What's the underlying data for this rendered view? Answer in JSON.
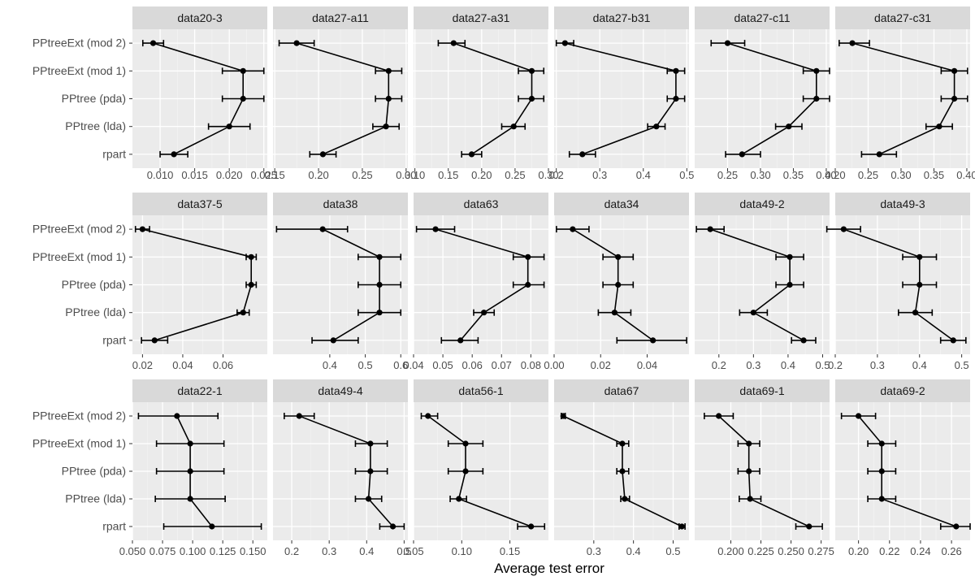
{
  "chart_data": {
    "type": "scatter",
    "xlabel": "Average test error",
    "ylabel": "",
    "grid": true,
    "legend": "none",
    "models": [
      "PPtreeExt (mod 2)",
      "PPtreeExt (mod 1)",
      "PPtree (pda)",
      "PPtree (lda)",
      "rpart"
    ],
    "panels": [
      {
        "title": "data20-3",
        "xlim": [
          0.006,
          0.0255
        ],
        "ticks": [
          0.01,
          0.015,
          0.02,
          0.025
        ],
        "tick_labels": [
          "0.010",
          "0.015",
          "0.020",
          "0.025"
        ],
        "values": [
          0.009,
          0.022,
          0.022,
          0.02,
          0.012
        ],
        "lower": [
          0.0075,
          0.019,
          0.019,
          0.017,
          0.01
        ],
        "upper": [
          0.0105,
          0.025,
          0.025,
          0.023,
          0.014
        ]
      },
      {
        "title": "data27-a11",
        "xlim": [
          0.148,
          0.302
        ],
        "ticks": [
          0.15,
          0.2,
          0.25,
          0.3
        ],
        "tick_labels": [
          "0.15",
          "0.20",
          "0.25",
          "0.30"
        ],
        "values": [
          0.175,
          0.28,
          0.28,
          0.277,
          0.205
        ],
        "lower": [
          0.155,
          0.265,
          0.265,
          0.262,
          0.19
        ],
        "upper": [
          0.195,
          0.295,
          0.295,
          0.292,
          0.22
        ]
      },
      {
        "title": "data27-a31",
        "xlim": [
          0.098,
          0.3
        ],
        "ticks": [
          0.1,
          0.15,
          0.2,
          0.25,
          0.3
        ],
        "tick_labels": [
          "0.10",
          "0.15",
          "0.20",
          "0.25",
          "0.30"
        ],
        "values": [
          0.158,
          0.275,
          0.275,
          0.248,
          0.185
        ],
        "lower": [
          0.135,
          0.255,
          0.255,
          0.23,
          0.17
        ],
        "upper": [
          0.175,
          0.293,
          0.293,
          0.265,
          0.2
        ]
      },
      {
        "title": "data27-b31",
        "xlim": [
          0.195,
          0.505
        ],
        "ticks": [
          0.2,
          0.3,
          0.4,
          0.5
        ],
        "tick_labels": [
          "0.2",
          "0.3",
          "0.4",
          "0.5"
        ],
        "values": [
          0.22,
          0.475,
          0.475,
          0.43,
          0.26
        ],
        "lower": [
          0.2,
          0.455,
          0.455,
          0.41,
          0.23
        ],
        "upper": [
          0.24,
          0.495,
          0.495,
          0.45,
          0.29
        ]
      },
      {
        "title": "data27-c11",
        "xlim": [
          0.2,
          0.405
        ],
        "ticks": [
          0.25,
          0.3,
          0.35,
          0.4
        ],
        "tick_labels": [
          "0.25",
          "0.30",
          "0.35",
          "0.40"
        ],
        "values": [
          0.25,
          0.385,
          0.385,
          0.343,
          0.272
        ],
        "lower": [
          0.225,
          0.365,
          0.365,
          0.323,
          0.247
        ],
        "upper": [
          0.276,
          0.405,
          0.405,
          0.363,
          0.3
        ]
      },
      {
        "title": "data27-c31",
        "xlim": [
          0.2,
          0.405
        ],
        "ticks": [
          0.2,
          0.25,
          0.3,
          0.35,
          0.4
        ],
        "tick_labels": [
          "0.20",
          "0.25",
          "0.30",
          "0.35",
          "0.40"
        ],
        "values": [
          0.226,
          0.381,
          0.381,
          0.358,
          0.267
        ],
        "lower": [
          0.206,
          0.361,
          0.361,
          0.338,
          0.24
        ],
        "upper": [
          0.252,
          0.401,
          0.401,
          0.378,
          0.293
        ]
      },
      {
        "title": "data37-5",
        "xlim": [
          0.015,
          0.082
        ],
        "ticks": [
          0.02,
          0.04,
          0.06
        ],
        "tick_labels": [
          "0.02",
          "0.04",
          "0.06"
        ],
        "values": [
          0.02,
          0.074,
          0.074,
          0.07,
          0.026
        ],
        "lower": [
          0.0165,
          0.0715,
          0.0715,
          0.067,
          0.0195
        ],
        "upper": [
          0.0235,
          0.0765,
          0.0765,
          0.073,
          0.0325
        ]
      },
      {
        "title": "data38",
        "xlim": [
          0.24,
          0.62
        ],
        "ticks": [
          0.4,
          0.5,
          0.6
        ],
        "tick_labels": [
          "0.4",
          "0.5",
          "0.6"
        ],
        "values": [
          0.38,
          0.54,
          0.54,
          0.54,
          0.41
        ],
        "lower": [
          0.25,
          0.48,
          0.48,
          0.48,
          0.35
        ],
        "upper": [
          0.45,
          0.6,
          0.6,
          0.6,
          0.48
        ]
      },
      {
        "title": "data63",
        "xlim": [
          0.04,
          0.086
        ],
        "ticks": [
          0.04,
          0.05,
          0.06,
          0.07,
          0.08
        ],
        "tick_labels": [
          "0.04",
          "0.05",
          "0.06",
          "0.07",
          "0.08"
        ],
        "values": [
          0.0475,
          0.079,
          0.079,
          0.064,
          0.056
        ],
        "lower": [
          0.041,
          0.074,
          0.074,
          0.0605,
          0.0495
        ],
        "upper": [
          0.054,
          0.0845,
          0.0845,
          0.0675,
          0.062
        ]
      },
      {
        "title": "data34",
        "xlim": [
          0.0,
          0.058
        ],
        "ticks": [
          0.0,
          0.02,
          0.04
        ],
        "tick_labels": [
          "0.00",
          "0.02",
          "0.04"
        ],
        "values": [
          0.008,
          0.0275,
          0.0275,
          0.026,
          0.0425
        ],
        "lower": [
          0.001,
          0.021,
          0.021,
          0.019,
          0.027
        ],
        "upper": [
          0.015,
          0.034,
          0.034,
          0.033,
          0.057
        ]
      },
      {
        "title": "data49-2",
        "xlim": [
          0.13,
          0.52
        ],
        "ticks": [
          0.2,
          0.3,
          0.4,
          0.5
        ],
        "tick_labels": [
          "0.2",
          "0.3",
          "0.4",
          "0.5"
        ],
        "values": [
          0.175,
          0.405,
          0.405,
          0.3,
          0.445
        ],
        "lower": [
          0.135,
          0.365,
          0.365,
          0.26,
          0.41
        ],
        "upper": [
          0.215,
          0.445,
          0.445,
          0.34,
          0.48
        ]
      },
      {
        "title": "data49-3",
        "xlim": [
          0.2,
          0.52
        ],
        "ticks": [
          0.2,
          0.3,
          0.4,
          0.5
        ],
        "tick_labels": [
          "0.2",
          "0.3",
          "0.4",
          "0.5"
        ],
        "values": [
          0.22,
          0.4,
          0.4,
          0.39,
          0.48
        ],
        "lower": [
          0.18,
          0.36,
          0.36,
          0.35,
          0.45
        ],
        "upper": [
          0.26,
          0.44,
          0.44,
          0.43,
          0.51
        ]
      },
      {
        "title": "data22-1",
        "xlim": [
          0.05,
          0.162
        ],
        "ticks": [
          0.05,
          0.075,
          0.1,
          0.125,
          0.15
        ],
        "tick_labels": [
          "0.050",
          "0.075",
          "0.100",
          "0.125",
          "0.150"
        ],
        "values": [
          0.087,
          0.098,
          0.098,
          0.098,
          0.116
        ],
        "lower": [
          0.055,
          0.07,
          0.07,
          0.069,
          0.076
        ],
        "upper": [
          0.121,
          0.126,
          0.126,
          0.127,
          0.157
        ]
      },
      {
        "title": "data49-4",
        "xlim": [
          0.15,
          0.51
        ],
        "ticks": [
          0.2,
          0.3,
          0.4,
          0.5
        ],
        "tick_labels": [
          "0.2",
          "0.3",
          "0.4",
          "0.5"
        ],
        "values": [
          0.22,
          0.41,
          0.41,
          0.405,
          0.47
        ],
        "lower": [
          0.18,
          0.37,
          0.37,
          0.37,
          0.435
        ],
        "upper": [
          0.26,
          0.455,
          0.455,
          0.44,
          0.5
        ]
      },
      {
        "title": "data56-1",
        "xlim": [
          0.05,
          0.19
        ],
        "ticks": [
          0.05,
          0.1,
          0.15
        ],
        "tick_labels": [
          "0.05",
          "0.10",
          "0.15"
        ],
        "values": [
          0.065,
          0.104,
          0.104,
          0.097,
          0.172
        ],
        "lower": [
          0.058,
          0.086,
          0.086,
          0.088,
          0.158
        ],
        "upper": [
          0.075,
          0.122,
          0.122,
          0.105,
          0.186
        ]
      },
      {
        "title": "data67",
        "xlim": [
          0.2,
          0.54
        ],
        "ticks": [
          0.3,
          0.4,
          0.5
        ],
        "tick_labels": [
          "0.3",
          "0.4",
          "0.5"
        ],
        "values": [
          0.223,
          0.372,
          0.372,
          0.378,
          0.522
        ],
        "lower": [
          0.218,
          0.358,
          0.358,
          0.368,
          0.515
        ],
        "upper": [
          0.228,
          0.388,
          0.388,
          0.39,
          0.53
        ]
      },
      {
        "title": "data69-1",
        "xlim": [
          0.17,
          0.282
        ],
        "ticks": [
          0.2,
          0.225,
          0.25,
          0.275
        ],
        "tick_labels": [
          "0.200",
          "0.225",
          "0.250",
          "0.275"
        ],
        "values": [
          0.19,
          0.215,
          0.215,
          0.216,
          0.265
        ],
        "lower": [
          0.178,
          0.206,
          0.206,
          0.207,
          0.254
        ],
        "upper": [
          0.202,
          0.224,
          0.224,
          0.225,
          0.276
        ]
      },
      {
        "title": "data69-2",
        "xlim": [
          0.185,
          0.272
        ],
        "ticks": [
          0.2,
          0.22,
          0.24,
          0.26
        ],
        "tick_labels": [
          "0.20",
          "0.22",
          "0.24",
          "0.26"
        ],
        "values": [
          0.2,
          0.215,
          0.215,
          0.215,
          0.263
        ],
        "lower": [
          0.189,
          0.206,
          0.206,
          0.206,
          0.253
        ],
        "upper": [
          0.211,
          0.224,
          0.224,
          0.224,
          0.272
        ]
      }
    ]
  }
}
